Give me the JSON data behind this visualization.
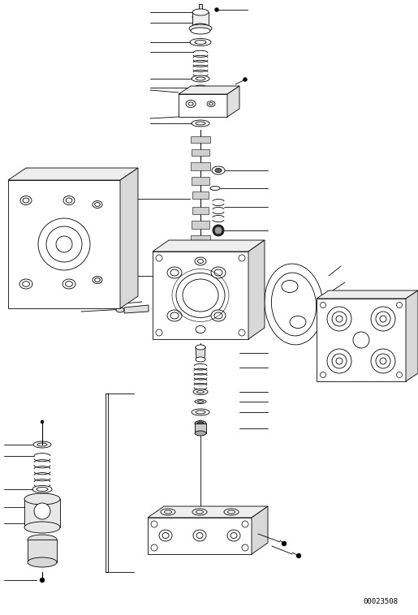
{
  "figure_width": 5.15,
  "figure_height": 7.58,
  "dpi": 100,
  "bg_color": "#ffffff",
  "line_color": "#000000",
  "watermark": "00023508",
  "lw": 0.6
}
